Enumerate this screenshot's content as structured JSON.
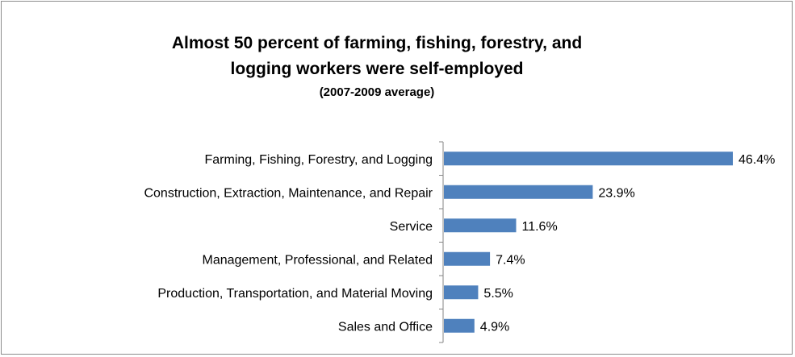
{
  "chart_data": {
    "type": "bar",
    "orientation": "horizontal",
    "title": "Almost 50 percent of farming, fishing, forestry, and logging workers were self-employed",
    "title_lines": [
      "Almost 50 percent of farming, fishing, forestry, and",
      "logging workers were self-employed"
    ],
    "subtitle": "(2007-2009 average)",
    "categories": [
      "Farming, Fishing, Forestry, and Logging",
      "Construction, Extraction, Maintenance, and Repair",
      "Service",
      "Management, Professional, and Related",
      "Production, Transportation, and Material Moving",
      "Sales and Office"
    ],
    "values": [
      46.4,
      23.9,
      11.6,
      7.4,
      5.5,
      4.9
    ],
    "value_labels": [
      "46.4%",
      "23.9%",
      "11.6%",
      "7.4%",
      "5.5%",
      "4.9%"
    ],
    "xlim": [
      0,
      46.4
    ],
    "grid": false,
    "legend": "none",
    "bar_color": "#4f81bd",
    "xlabel": "",
    "ylabel": ""
  }
}
